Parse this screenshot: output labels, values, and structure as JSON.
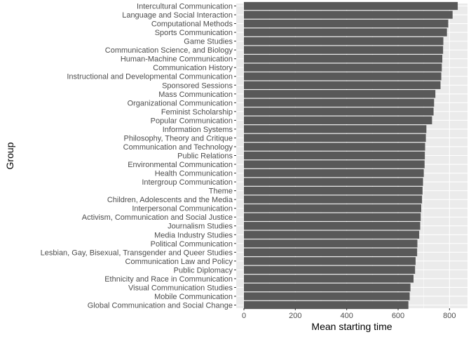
{
  "chart_data": {
    "type": "bar",
    "orientation": "horizontal",
    "xlabel": "Mean starting time",
    "ylabel": "Group",
    "xlim": [
      -30,
      870
    ],
    "xticks": [
      0,
      200,
      400,
      600,
      800
    ],
    "categories": [
      "Intercultural Communication",
      "Language and Social Interaction",
      "Computational Methods",
      "Sports Communication",
      "Game Studies",
      "Communication Science, and Biology",
      "Human-Machine Communication",
      "Communication History",
      "Instructional and Developmental Communication",
      "Sponsored Sessions",
      "Mass Communication",
      "Organizational Communication",
      "Feminist Scholarship",
      "Popular Communication",
      "Information Systems",
      "Philosophy, Theory and Critique",
      "Communication and Technology",
      "Public Relations",
      "Environmental Communication",
      "Health Communication",
      "Intergroup Communication",
      "Theme",
      "Children, Adolescents and the Media",
      "Interpersonal Communication",
      "Activism, Communication and Social Justice",
      "Journalism Studies",
      "Media Industry Studies",
      "Political Communication",
      "Lesbian, Gay, Bisexual, Transgender and Queer Studies",
      "Communication Law and Policy",
      "Public Diplomacy",
      "Ethnicity and Race in Communication",
      "Visual Communication Studies",
      "Mobile Communication",
      "Global Communication and Social Change"
    ],
    "values": [
      832,
      812,
      795,
      790,
      776,
      775,
      772,
      770,
      768,
      765,
      745,
      740,
      738,
      732,
      710,
      708,
      705,
      704,
      703,
      700,
      697,
      695,
      693,
      690,
      688,
      686,
      682,
      675,
      674,
      668,
      666,
      660,
      648,
      645,
      640
    ],
    "colors": {
      "bar": "#595959",
      "panel": "#ebebeb",
      "grid_major": "#ffffff",
      "tick": "#333333",
      "label": "#4d4d4d"
    }
  }
}
